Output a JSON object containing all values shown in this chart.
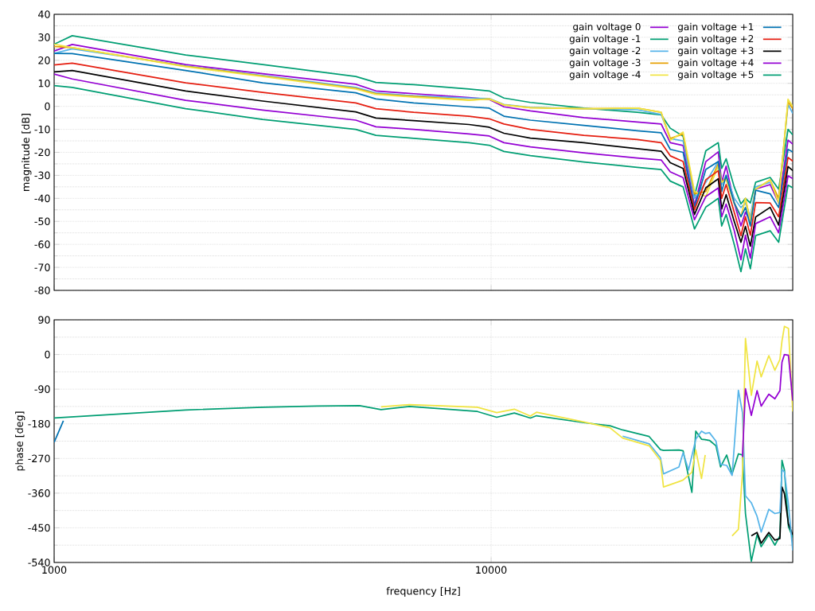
{
  "chart_data": [
    {
      "type": "line",
      "ylabel": "magnitude [dB]",
      "log": "x",
      "grid": true,
      "legend": "top right",
      "tick_labels": "y",
      "xlim": [
        1000,
        49000
      ],
      "xticks": [
        1000,
        10000
      ],
      "ylim": [
        -80,
        40
      ],
      "yticks": [
        -80,
        -70,
        -60,
        -50,
        -40,
        -30,
        -20,
        -10,
        0,
        10,
        20,
        30,
        40
      ],
      "x": [
        1000,
        1100,
        2000,
        3000,
        4900,
        5450,
        6650,
        8900,
        9900,
        10700,
        12300,
        16300,
        21600,
        24500,
        25700,
        27500,
        29200,
        31000,
        33100,
        33700,
        34500,
        36000,
        37300,
        38200,
        39200,
        40300,
        43500,
        45500,
        47800,
        49000
      ],
      "series": [
        {
          "name": "gain voltage 0",
          "color": "#9400d3",
          "values": [
            24,
            26.9,
            18.2,
            14.2,
            9.6,
            6.7,
            5.5,
            3.8,
            3.0,
            -0.2,
            -2.0,
            -4.9,
            -6.8,
            -7.7,
            -15.8,
            -17,
            -43,
            -24,
            -19.8,
            -33,
            -26,
            -42,
            -52,
            -46,
            -50,
            -36,
            -34,
            -42,
            -14.7,
            -16.4
          ]
        },
        {
          "name": "gain voltage -1",
          "color": "#009e73",
          "values": [
            27,
            30.7,
            22.3,
            18.2,
            13.0,
            10.4,
            9.4,
            7.5,
            6.7,
            3.6,
            1.7,
            -0.8,
            -2.6,
            -3.7,
            -9.5,
            -13,
            -39,
            -19.3,
            -15.8,
            -27,
            -22.8,
            -35,
            -42.4,
            -40,
            -42,
            -33,
            -30.9,
            -36,
            -10.0,
            -12.4
          ]
        },
        {
          "name": "gain voltage -2",
          "color": "#56b4e9",
          "values": [
            23,
            25,
            17.6,
            13.4,
            8.2,
            5.8,
            4.6,
            3.6,
            3.4,
            0.8,
            -0.4,
            -1.0,
            -1.5,
            -3.5,
            -14,
            -15,
            -40,
            -33,
            -24,
            -34,
            -30,
            -40,
            -44,
            -42,
            -48,
            -35,
            -33,
            -40,
            0.9,
            -3.1
          ]
        },
        {
          "name": "gain voltage -3",
          "color": "#e69f00",
          "values": [
            26,
            25.5,
            17.4,
            13.2,
            7.8,
            5.5,
            4.3,
            2.8,
            3.2,
            0.6,
            -0.6,
            -1.0,
            -0.8,
            -2.6,
            -14,
            -12,
            -38,
            -37,
            -25,
            -33,
            -31,
            -42,
            -48,
            -40,
            -50,
            -36,
            -32,
            -40,
            2,
            -1
          ]
        },
        {
          "name": "gain voltage -4",
          "color": "#f0e442",
          "values": [
            27,
            25.5,
            17.2,
            13.0,
            7.5,
            5.2,
            4.0,
            2.6,
            3.2,
            0.6,
            -0.6,
            -1.0,
            -0.8,
            -2.6,
            -14.7,
            -11.2,
            -37,
            -39.2,
            -26,
            -33,
            -32,
            -42,
            -48,
            -40,
            -50,
            -36,
            -32,
            -42,
            3.1,
            0
          ]
        },
        {
          "name": "gain voltage +1",
          "color": "#0072b2",
          "values": [
            23,
            22.9,
            15.6,
            10.2,
            5.9,
            3.2,
            1.5,
            -0.2,
            -0.8,
            -4.3,
            -6.0,
            -8.3,
            -10.6,
            -11.5,
            -18.7,
            -20,
            -44,
            -27.4,
            -24,
            -37,
            -30,
            -42,
            -48,
            -44,
            -52,
            -36.5,
            -38,
            -44,
            -18.7,
            -19.8
          ]
        },
        {
          "name": "gain voltage +2",
          "color": "#e51e10",
          "values": [
            18,
            18.8,
            10.2,
            6.1,
            1.5,
            -1.0,
            -2.6,
            -4.3,
            -5.4,
            -7.7,
            -10.0,
            -12.6,
            -14.4,
            -15.8,
            -21.5,
            -24,
            -45,
            -31.9,
            -28,
            -40,
            -34,
            -46,
            -56.2,
            -48,
            -56,
            -41.8,
            -42,
            -48,
            -22.2,
            -23.8
          ]
        },
        {
          "name": "gain voltage +3",
          "color": "#000000",
          "values": [
            15,
            15.6,
            6.7,
            2.3,
            -2.4,
            -5.1,
            -6.2,
            -7.9,
            -9.1,
            -11.7,
            -13.8,
            -15.8,
            -18.4,
            -19.5,
            -24.5,
            -27,
            -47,
            -35.4,
            -31.5,
            -44.6,
            -38.4,
            -50,
            -59.1,
            -52.2,
            -60.8,
            -48.1,
            -43.9,
            -51.6,
            -26.2,
            -27.9
          ]
        },
        {
          "name": "gain voltage +4",
          "color": "#9400d3",
          "values": [
            14,
            11.9,
            2.6,
            -1.6,
            -6.0,
            -8.9,
            -10.0,
            -12.0,
            -12.9,
            -15.8,
            -17.6,
            -20.2,
            -22.5,
            -23.3,
            -28.5,
            -31,
            -49.3,
            -39.2,
            -35.5,
            -48,
            -42.5,
            -54,
            -66.7,
            -56,
            -66,
            -51,
            -48,
            -55,
            -30.2,
            -31.4
          ]
        },
        {
          "name": "gain voltage +5",
          "color": "#009e73",
          "values": [
            9,
            8.2,
            -1.0,
            -5.7,
            -10.0,
            -12.6,
            -13.9,
            -15.8,
            -16.9,
            -19.6,
            -21.4,
            -24.2,
            -26.5,
            -27.5,
            -32.5,
            -35,
            -53.3,
            -43.8,
            -40,
            -52,
            -47,
            -60,
            -71.9,
            -62,
            -70.6,
            -56.2,
            -54.1,
            -59.1,
            -34.3,
            -35.4
          ]
        }
      ]
    },
    {
      "type": "line",
      "xlabel": "frequency [Hz]",
      "ylabel": "phase [deg]",
      "log": "x",
      "grid": true,
      "xlim": [
        1000,
        49000
      ],
      "xticks": [
        1000,
        10000
      ],
      "ylim": [
        -540,
        90
      ],
      "yticks": [
        -540,
        -450,
        -360,
        -270,
        -180,
        -90,
        0,
        90
      ],
      "x": [
        1000,
        2000,
        3000,
        4000,
        5000,
        5600,
        6500,
        9300,
        10300,
        11300,
        12300,
        12700,
        16300,
        18700,
        20000,
        23000,
        24400,
        24800,
        26900,
        27500,
        28800,
        29400,
        30300,
        30900,
        31600,
        32700,
        33500,
        34600,
        35600,
        36800,
        37600,
        38200,
        39400,
        40600,
        41500,
        43200,
        44600,
        45800,
        46300,
        46900,
        47900,
        49000
      ],
      "series": [
        {
          "color": "#009e73",
          "values": [
            -165,
            -144,
            -137,
            -134,
            -133,
            -143,
            -135,
            -148,
            -163,
            -152,
            -165,
            -159,
            -177,
            -185,
            -196,
            -213,
            -247,
            -249,
            -248,
            -250,
            -358,
            -199,
            -220,
            -221,
            -223,
            -237,
            -292,
            -261,
            -310,
            -258,
            -261,
            -413,
            -537,
            -468,
            -499,
            -468,
            -495,
            -471,
            -275,
            -300,
            -447,
            -475
          ]
        },
        {
          "color": "#000000",
          "x": [
            39400,
            40600,
            41500,
            43200,
            44600,
            45800,
            46300,
            46900,
            47900,
            49000
          ],
          "values": [
            -471,
            -462,
            -490,
            -462,
            -482,
            -478,
            -344,
            -361,
            -440,
            -468
          ]
        },
        {
          "color": "#0072b2",
          "x": [
            1000,
            1050
          ],
          "values": [
            -228,
            -172
          ]
        },
        {
          "color": "#56b4e9",
          "x": [
            20000,
            23000,
            24400,
            24800,
            26900,
            27500,
            28300,
            29400,
            30300,
            30900,
            31600,
            32700,
            33500,
            34600,
            35600,
            36800,
            37600,
            38200,
            39400,
            40600,
            41500,
            43200,
            44600,
            45800,
            46300,
            46900,
            47900,
            49000
          ],
          "values": [
            -212,
            -232,
            -268,
            -310,
            -292,
            -255,
            -300,
            -220,
            -199,
            -205,
            -203,
            -225,
            -285,
            -288,
            -314,
            -93,
            -151,
            -367,
            -385,
            -420,
            -461,
            -402,
            -413,
            -410,
            -299,
            -305,
            -389,
            -509
          ]
        },
        {
          "color": "#f0e442",
          "x": [
            5600,
            6500,
            9300,
            10300,
            11300,
            12300,
            12700,
            16300,
            18700,
            20000,
            23000,
            24400,
            24800,
            26900,
            27500,
            28800,
            29400,
            30300,
            30900,
            31600,
            32700,
            33500,
            34600,
            35600,
            36800,
            37600,
            38200,
            39400,
            40600,
            41500,
            43200,
            44600,
            45800,
            46300,
            46900,
            47900,
            49000
          ],
          "values": [
            -136,
            -130,
            -137,
            -151,
            -142,
            -160,
            -150,
            -175,
            -190,
            -217,
            -237,
            -275,
            -344,
            -330,
            -326,
            -306,
            -248,
            -322,
            -261,
            null,
            null,
            null,
            null,
            -471,
            -454,
            -310,
            42,
            -106,
            -17,
            -58,
            -3,
            -41,
            -13,
            35,
            73,
            68,
            -148
          ]
        },
        {
          "color": "#9400d3",
          "x": [
            37600,
            38200,
            39400,
            40600,
            41500,
            43200,
            44600,
            45800,
            46300,
            46900,
            47900,
            49000
          ],
          "values": [
            -266,
            -89,
            -158,
            -94,
            -134,
            -103,
            -115,
            -94,
            -20,
            0,
            -2,
            -120
          ]
        }
      ]
    }
  ]
}
